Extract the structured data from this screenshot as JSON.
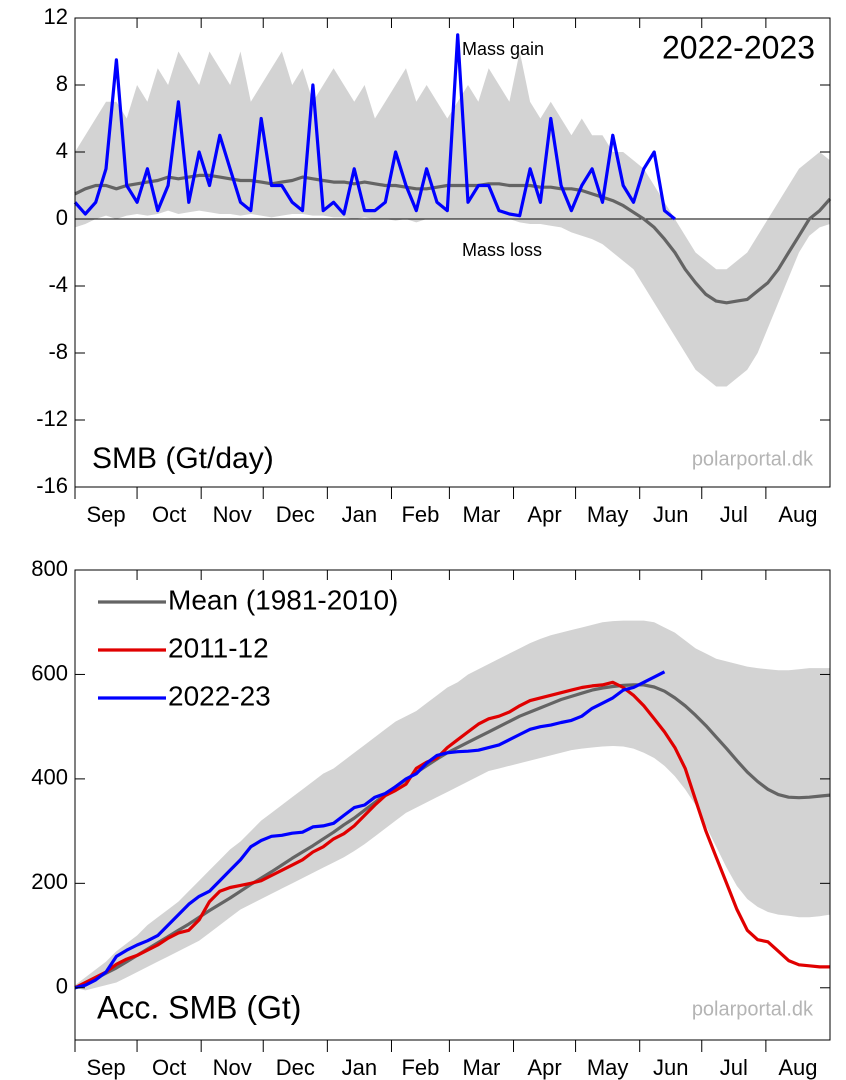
{
  "chart_data": [
    {
      "type": "line",
      "title": "2022-2023",
      "label": "SMB (Gt/day)",
      "credit": "polarportal.dk",
      "annotations": [
        "Mass gain",
        "Mass loss"
      ],
      "x": [
        0,
        5,
        10,
        15,
        20,
        25,
        30,
        35,
        40,
        45,
        50,
        55,
        60,
        65,
        70,
        75,
        80,
        85,
        90,
        95,
        100,
        105,
        110,
        115,
        120,
        125,
        130,
        135,
        140,
        145,
        150,
        155,
        160,
        165,
        170,
        175,
        180,
        185,
        190,
        195,
        200,
        205,
        210,
        215,
        220,
        225,
        230,
        235,
        240,
        245,
        250,
        255,
        260,
        265,
        270,
        275,
        280,
        285,
        290,
        295,
        300,
        305,
        310,
        315,
        320,
        325,
        330,
        335,
        340,
        345,
        350,
        355,
        360,
        365
      ],
      "xlim": [
        0,
        365
      ],
      "xticks": [
        {
          "value": 0,
          "label": "Sep"
        },
        {
          "value": 30,
          "label": "Oct"
        },
        {
          "value": 61,
          "label": "Nov"
        },
        {
          "value": 91,
          "label": "Dec"
        },
        {
          "value": 122,
          "label": "Jan"
        },
        {
          "value": 153,
          "label": "Feb"
        },
        {
          "value": 181,
          "label": "Mar"
        },
        {
          "value": 212,
          "label": "Apr"
        },
        {
          "value": 242,
          "label": "May"
        },
        {
          "value": 273,
          "label": "Jun"
        },
        {
          "value": 303,
          "label": "Jul"
        },
        {
          "value": 334,
          "label": "Aug"
        }
      ],
      "ylim": [
        -16,
        12
      ],
      "yticks": [
        -16,
        -12,
        -8,
        -4,
        0,
        4,
        8,
        12
      ],
      "zero_line": true,
      "band": {
        "color": "#d3d3d3",
        "upper": [
          4,
          5,
          6,
          7,
          7,
          6,
          8,
          7,
          9,
          8,
          10,
          9,
          8,
          10,
          9,
          8,
          10,
          7,
          8,
          9,
          10,
          8,
          9,
          7,
          8,
          9,
          8,
          7,
          8,
          6,
          7,
          8,
          9,
          7,
          8,
          7,
          6,
          7,
          8,
          7,
          9,
          8,
          7,
          10,
          7,
          6,
          7,
          6,
          5,
          6,
          5,
          5,
          4,
          4,
          3.5,
          3,
          2,
          1,
          0,
          -1,
          -2,
          -2.5,
          -3,
          -3,
          -2.5,
          -2,
          -1,
          0,
          1,
          2,
          3,
          3.5,
          4,
          3.5
        ],
        "lower": [
          -0.5,
          -0.3,
          0,
          0.2,
          0,
          0.2,
          0.3,
          0.2,
          0.3,
          0.5,
          0.3,
          0.4,
          0.5,
          0.4,
          0.3,
          0.3,
          0.2,
          0.3,
          0.2,
          0.1,
          0.2,
          0.3,
          0.3,
          0.2,
          0.2,
          0.1,
          0.1,
          0,
          0.1,
          0,
          0,
          -0.1,
          0,
          -0.2,
          0,
          0,
          0,
          0,
          0,
          0,
          0,
          0,
          0,
          -0.2,
          -0.3,
          -0.3,
          -0.4,
          -0.5,
          -0.8,
          -1,
          -1.2,
          -1.5,
          -2,
          -2.5,
          -3,
          -4,
          -5,
          -6,
          -7,
          -8,
          -9,
          -9.5,
          -10,
          -10,
          -9.5,
          -9,
          -8,
          -6.5,
          -5,
          -3.5,
          -2,
          -1,
          -0.5,
          -0.3
        ]
      },
      "series": [
        {
          "color": "#646464",
          "values": [
            1.5,
            1.8,
            2.0,
            2.0,
            1.8,
            2.0,
            2.1,
            2.2,
            2.3,
            2.5,
            2.4,
            2.5,
            2.6,
            2.6,
            2.5,
            2.4,
            2.3,
            2.3,
            2.2,
            2.1,
            2.2,
            2.3,
            2.5,
            2.4,
            2.3,
            2.2,
            2.2,
            2.1,
            2.2,
            2.1,
            2.0,
            2.0,
            1.9,
            1.8,
            1.8,
            1.9,
            2.0,
            2.0,
            2.0,
            2.0,
            2.1,
            2.1,
            2.0,
            2.0,
            2.0,
            1.9,
            1.9,
            1.8,
            1.8,
            1.7,
            1.5,
            1.3,
            1.1,
            0.8,
            0.4,
            0.0,
            -0.5,
            -1.2,
            -2.0,
            -3.0,
            -3.8,
            -4.5,
            -4.9,
            -5.0,
            -4.9,
            -4.8,
            -4.3,
            -3.8,
            -3.0,
            -2.0,
            -1.0,
            0.0,
            0.5,
            1.2
          ]
        },
        {
          "color": "#0000ff",
          "values": [
            1,
            0.3,
            1,
            3,
            9.5,
            2,
            1,
            3,
            0.5,
            2,
            7,
            1,
            4,
            2,
            5,
            3,
            1,
            0.5,
            6,
            2,
            2,
            1,
            0.5,
            8,
            0.5,
            1,
            0.3,
            3,
            0.5,
            0.5,
            1,
            4,
            2,
            0.5,
            3,
            1,
            0.5,
            11,
            1,
            2,
            2,
            0.5,
            0.3,
            0.2,
            3,
            1,
            6,
            2,
            0.5,
            2,
            3,
            1,
            5,
            2,
            1,
            3,
            4,
            0.5,
            0,
            null,
            null,
            null,
            null,
            null,
            null,
            null,
            null,
            null,
            null,
            null,
            null,
            null,
            null,
            null
          ]
        }
      ]
    },
    {
      "type": "line",
      "label": "Acc. SMB (Gt)",
      "credit": "polarportal.dk",
      "legend": "upper left",
      "x": [
        0,
        5,
        10,
        15,
        20,
        25,
        30,
        35,
        40,
        45,
        50,
        55,
        60,
        65,
        70,
        75,
        80,
        85,
        90,
        95,
        100,
        105,
        110,
        115,
        120,
        125,
        130,
        135,
        140,
        145,
        150,
        155,
        160,
        165,
        170,
        175,
        180,
        185,
        190,
        195,
        200,
        205,
        210,
        215,
        220,
        225,
        230,
        235,
        240,
        245,
        250,
        255,
        260,
        265,
        270,
        275,
        280,
        285,
        290,
        295,
        300,
        305,
        310,
        315,
        320,
        325,
        330,
        335,
        340,
        345,
        350,
        355,
        360,
        365
      ],
      "xlim": [
        0,
        365
      ],
      "xticks": [
        {
          "value": 0,
          "label": "Sep"
        },
        {
          "value": 30,
          "label": "Oct"
        },
        {
          "value": 61,
          "label": "Nov"
        },
        {
          "value": 91,
          "label": "Dec"
        },
        {
          "value": 122,
          "label": "Jan"
        },
        {
          "value": 153,
          "label": "Feb"
        },
        {
          "value": 181,
          "label": "Mar"
        },
        {
          "value": 212,
          "label": "Apr"
        },
        {
          "value": 242,
          "label": "May"
        },
        {
          "value": 273,
          "label": "Jun"
        },
        {
          "value": 303,
          "label": "Jul"
        },
        {
          "value": 334,
          "label": "Aug"
        }
      ],
      "ylim": [
        -100,
        800
      ],
      "yticks": [
        0,
        200,
        400,
        600,
        800
      ],
      "band": {
        "color": "#d3d3d3",
        "upper": [
          5,
          20,
          35,
          50,
          70,
          85,
          100,
          120,
          135,
          150,
          165,
          185,
          205,
          225,
          245,
          265,
          280,
          300,
          320,
          335,
          350,
          365,
          380,
          395,
          410,
          420,
          435,
          450,
          465,
          480,
          495,
          510,
          520,
          530,
          545,
          560,
          575,
          585,
          600,
          610,
          620,
          630,
          640,
          650,
          660,
          668,
          675,
          680,
          685,
          690,
          695,
          700,
          702,
          703,
          703,
          703,
          700,
          690,
          680,
          665,
          650,
          640,
          630,
          625,
          620,
          615,
          612,
          610,
          608,
          608,
          610,
          612,
          612,
          612
        ],
        "lower": [
          0,
          -5,
          0,
          5,
          10,
          20,
          30,
          40,
          50,
          60,
          70,
          80,
          90,
          105,
          120,
          135,
          150,
          160,
          170,
          180,
          190,
          200,
          210,
          220,
          230,
          240,
          250,
          262,
          275,
          290,
          305,
          320,
          335,
          345,
          355,
          365,
          375,
          385,
          395,
          405,
          415,
          420,
          425,
          430,
          435,
          440,
          445,
          450,
          455,
          458,
          460,
          462,
          463,
          462,
          458,
          450,
          440,
          425,
          405,
          380,
          350,
          310,
          270,
          230,
          195,
          170,
          155,
          145,
          140,
          138,
          135,
          135,
          137,
          140
        ]
      },
      "series": [
        {
          "name": "Mean (1981-2010)",
          "color": "#646464",
          "values": [
            0,
            8,
            18,
            28,
            38,
            50,
            62,
            74,
            86,
            98,
            110,
            122,
            135,
            148,
            160,
            172,
            185,
            198,
            210,
            222,
            235,
            248,
            260,
            272,
            285,
            298,
            312,
            325,
            340,
            355,
            370,
            385,
            398,
            412,
            425,
            438,
            450,
            460,
            470,
            480,
            490,
            500,
            510,
            520,
            528,
            536,
            544,
            552,
            558,
            564,
            570,
            574,
            577,
            579,
            580,
            580,
            576,
            568,
            555,
            540,
            522,
            502,
            480,
            458,
            435,
            413,
            395,
            380,
            370,
            365,
            364,
            365,
            367,
            369
          ]
        },
        {
          "name": "2011-12",
          "color": "#e00000",
          "values": [
            0,
            10,
            20,
            30,
            45,
            55,
            62,
            72,
            82,
            95,
            105,
            110,
            130,
            165,
            185,
            192,
            196,
            200,
            205,
            215,
            225,
            235,
            245,
            260,
            270,
            285,
            295,
            310,
            330,
            350,
            368,
            378,
            390,
            420,
            432,
            440,
            460,
            475,
            490,
            505,
            515,
            520,
            528,
            540,
            550,
            555,
            560,
            565,
            570,
            575,
            578,
            580,
            585,
            575,
            560,
            540,
            515,
            490,
            460,
            420,
            360,
            300,
            250,
            200,
            150,
            110,
            92,
            88,
            70,
            52,
            44,
            42,
            40,
            40
          ]
        },
        {
          "name": "2022-23",
          "color": "#0000ff",
          "values": [
            0,
            5,
            15,
            30,
            60,
            72,
            82,
            90,
            100,
            120,
            140,
            160,
            175,
            185,
            205,
            225,
            245,
            270,
            282,
            290,
            292,
            296,
            298,
            308,
            310,
            315,
            330,
            345,
            350,
            365,
            372,
            385,
            400,
            410,
            430,
            445,
            450,
            452,
            453,
            455,
            460,
            465,
            475,
            485,
            495,
            500,
            503,
            508,
            512,
            520,
            535,
            545,
            555,
            570,
            575,
            585,
            595,
            605,
            null,
            null,
            null,
            null,
            null,
            null,
            null,
            null,
            null,
            null,
            null,
            null,
            null,
            null,
            null,
            null
          ]
        }
      ]
    }
  ]
}
